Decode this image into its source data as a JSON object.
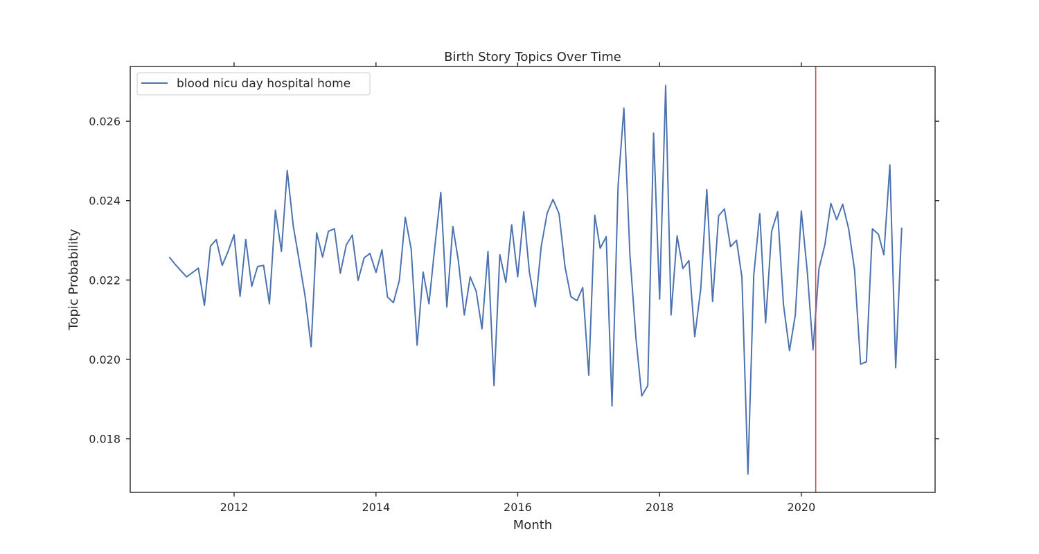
{
  "chart_data": {
    "type": "line",
    "title": "Birth Story Topics Over Time",
    "xlabel": "Month",
    "ylabel": "Topic Probability",
    "xlim": [
      "2010-07-15",
      "2021-11-20"
    ],
    "ylim": [
      0.01665,
      0.02738
    ],
    "xticks": [
      {
        "value": "2012-01-01",
        "label": "2012"
      },
      {
        "value": "2014-01-01",
        "label": "2014"
      },
      {
        "value": "2016-01-01",
        "label": "2016"
      },
      {
        "value": "2018-01-01",
        "label": "2018"
      },
      {
        "value": "2020-01-01",
        "label": "2020"
      }
    ],
    "yticks": [
      {
        "value": 0.018,
        "label": "0.018"
      },
      {
        "value": 0.02,
        "label": "0.020"
      },
      {
        "value": 0.022,
        "label": "0.022"
      },
      {
        "value": 0.024,
        "label": "0.024"
      },
      {
        "value": 0.026,
        "label": "0.026"
      }
    ],
    "grid": false,
    "legend_position": "top-left",
    "series": [
      {
        "name": "blood nicu day hospital home",
        "color": "#4c72b0",
        "x": [
          "2011-02-01",
          "2011-03-01",
          "2011-04-01",
          "2011-05-01",
          "2011-06-01",
          "2011-07-01",
          "2011-08-01",
          "2011-09-01",
          "2011-10-01",
          "2011-11-01",
          "2011-12-01",
          "2012-01-01",
          "2012-02-01",
          "2012-03-01",
          "2012-04-01",
          "2012-05-01",
          "2012-06-01",
          "2012-07-01",
          "2012-08-01",
          "2012-09-01",
          "2012-10-01",
          "2012-11-01",
          "2012-12-01",
          "2013-01-01",
          "2013-02-01",
          "2013-03-01",
          "2013-04-01",
          "2013-05-01",
          "2013-06-01",
          "2013-07-01",
          "2013-08-01",
          "2013-09-01",
          "2013-10-01",
          "2013-11-01",
          "2013-12-01",
          "2014-01-01",
          "2014-02-01",
          "2014-03-01",
          "2014-04-01",
          "2014-05-01",
          "2014-06-01",
          "2014-07-01",
          "2014-08-01",
          "2014-09-01",
          "2014-10-01",
          "2014-11-01",
          "2014-12-01",
          "2015-01-01",
          "2015-02-01",
          "2015-03-01",
          "2015-04-01",
          "2015-05-01",
          "2015-06-01",
          "2015-07-01",
          "2015-08-01",
          "2015-09-01",
          "2015-10-01",
          "2015-11-01",
          "2015-12-01",
          "2016-01-01",
          "2016-02-01",
          "2016-03-01",
          "2016-04-01",
          "2016-05-01",
          "2016-06-01",
          "2016-07-01",
          "2016-08-01",
          "2016-09-01",
          "2016-10-01",
          "2016-11-01",
          "2016-12-01",
          "2017-01-01",
          "2017-02-01",
          "2017-03-01",
          "2017-04-01",
          "2017-05-01",
          "2017-06-01",
          "2017-07-01",
          "2017-08-01",
          "2017-09-01",
          "2017-10-01",
          "2017-11-01",
          "2017-12-01",
          "2018-01-01",
          "2018-02-01",
          "2018-03-01",
          "2018-04-01",
          "2018-05-01",
          "2018-06-01",
          "2018-07-01",
          "2018-08-01",
          "2018-09-01",
          "2018-10-01",
          "2018-11-01",
          "2018-12-01",
          "2019-01-01",
          "2019-02-01",
          "2019-03-01",
          "2019-04-01",
          "2019-05-01",
          "2019-06-01",
          "2019-07-01",
          "2019-08-01",
          "2019-09-01",
          "2019-10-01",
          "2019-11-01",
          "2019-12-01",
          "2020-01-01",
          "2020-02-01",
          "2020-03-01",
          "2020-04-01",
          "2020-05-01",
          "2020-06-01",
          "2020-07-01",
          "2020-08-01",
          "2020-09-01",
          "2020-10-01",
          "2020-11-01",
          "2020-12-01",
          "2021-01-01",
          "2021-02-01",
          "2021-03-01",
          "2021-04-01",
          "2021-05-01",
          "2021-06-01"
        ],
        "y": [
          0.02258,
          0.02241,
          0.02224,
          0.02208,
          0.02219,
          0.0223,
          0.02136,
          0.02285,
          0.02302,
          0.02237,
          0.02272,
          0.02314,
          0.02159,
          0.02302,
          0.02184,
          0.02234,
          0.02237,
          0.0214,
          0.02376,
          0.02272,
          0.02476,
          0.02336,
          0.0225,
          0.02159,
          0.02032,
          0.02319,
          0.02258,
          0.02323,
          0.02329,
          0.02217,
          0.02288,
          0.02313,
          0.02199,
          0.02256,
          0.02267,
          0.02219,
          0.02276,
          0.02157,
          0.02143,
          0.02199,
          0.02358,
          0.02278,
          0.02036,
          0.0222,
          0.0214,
          0.02288,
          0.02421,
          0.02132,
          0.02335,
          0.02249,
          0.02112,
          0.02208,
          0.02172,
          0.02077,
          0.02272,
          0.01934,
          0.02264,
          0.02194,
          0.02339,
          0.02208,
          0.02372,
          0.02221,
          0.02133,
          0.02284,
          0.02369,
          0.02403,
          0.02367,
          0.02232,
          0.02158,
          0.02148,
          0.02181,
          0.0196,
          0.02363,
          0.0228,
          0.02309,
          0.01883,
          0.02436,
          0.02633,
          0.02264,
          0.02054,
          0.01908,
          0.01934,
          0.0257,
          0.02152,
          0.0269,
          0.02112,
          0.02311,
          0.02229,
          0.02249,
          0.02057,
          0.02178,
          0.02428,
          0.02146,
          0.02362,
          0.02379,
          0.02284,
          0.023,
          0.02207,
          0.01711,
          0.02212,
          0.02367,
          0.02092,
          0.02323,
          0.02372,
          0.02138,
          0.02022,
          0.02112,
          0.02374,
          0.02219,
          0.02024,
          0.02229,
          0.02288,
          0.02393,
          0.02352,
          0.02391,
          0.02328,
          0.02226,
          0.01988,
          0.01994,
          0.02329,
          0.02315,
          0.02264,
          0.0249,
          0.01979,
          0.02332
        ]
      }
    ],
    "annotations": [
      {
        "type": "vertical-line",
        "x": "2020-03-15",
        "color": "#c44e52"
      }
    ]
  }
}
